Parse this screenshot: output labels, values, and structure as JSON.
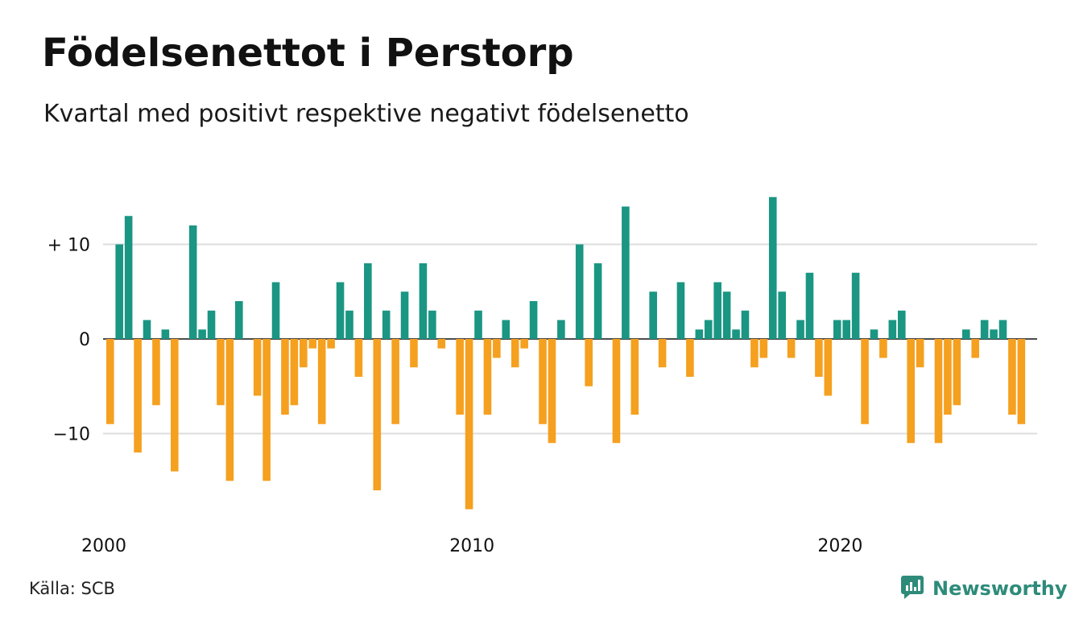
{
  "header": {
    "title": "Födelsenettot i Perstorp",
    "subtitle": "Kvartal med positivt respektive negativt födelsenetto"
  },
  "footer": {
    "source": "Källa: SCB",
    "brand": "Newsworthy"
  },
  "colors": {
    "positive": "#1a9683",
    "negative": "#f5a01f",
    "grid": "#dddddd",
    "brand": "#2e8b7a"
  },
  "chart_data": {
    "type": "bar",
    "x_tick_labels": [
      "2000",
      "2010",
      "2020"
    ],
    "y_tick_labels": [
      "+ 10",
      "0",
      "−10"
    ],
    "y_ticks": [
      10,
      0,
      -10
    ],
    "ylim": [
      -19,
      16
    ],
    "start_year": 2000,
    "categories": [
      "2000 Q1",
      "2000 Q2",
      "2000 Q3",
      "2000 Q4",
      "2001 Q1",
      "2001 Q2",
      "2001 Q3",
      "2001 Q4",
      "2002 Q1",
      "2002 Q2",
      "2002 Q3",
      "2002 Q4",
      "2003 Q1",
      "2003 Q2",
      "2003 Q3",
      "2003 Q4",
      "2004 Q1",
      "2004 Q2",
      "2004 Q3",
      "2004 Q4",
      "2005 Q1",
      "2005 Q2",
      "2005 Q3",
      "2005 Q4",
      "2006 Q1",
      "2006 Q2",
      "2006 Q3",
      "2006 Q4",
      "2007 Q1",
      "2007 Q2",
      "2007 Q3",
      "2007 Q4",
      "2008 Q1",
      "2008 Q2",
      "2008 Q3",
      "2008 Q4",
      "2009 Q1",
      "2009 Q2",
      "2009 Q3",
      "2009 Q4",
      "2010 Q1",
      "2010 Q2",
      "2010 Q3",
      "2010 Q4",
      "2011 Q1",
      "2011 Q2",
      "2011 Q3",
      "2011 Q4",
      "2012 Q1",
      "2012 Q2",
      "2012 Q3",
      "2012 Q4",
      "2013 Q1",
      "2013 Q2",
      "2013 Q3",
      "2013 Q4",
      "2014 Q1",
      "2014 Q2",
      "2014 Q3",
      "2014 Q4",
      "2015 Q1",
      "2015 Q2",
      "2015 Q3",
      "2015 Q4",
      "2016 Q1",
      "2016 Q2",
      "2016 Q3",
      "2016 Q4",
      "2017 Q1",
      "2017 Q2",
      "2017 Q3",
      "2017 Q4",
      "2018 Q1",
      "2018 Q2",
      "2018 Q3",
      "2018 Q4",
      "2019 Q1",
      "2019 Q2",
      "2019 Q3",
      "2019 Q4",
      "2020 Q1",
      "2020 Q2",
      "2020 Q3",
      "2020 Q4",
      "2021 Q1",
      "2021 Q2",
      "2021 Q3",
      "2021 Q4",
      "2022 Q1",
      "2022 Q2",
      "2022 Q3",
      "2022 Q4",
      "2023 Q1",
      "2023 Q2",
      "2023 Q3",
      "2023 Q4",
      "2024 Q1",
      "2024 Q2",
      "2024 Q3",
      "2024 Q4"
    ],
    "values": [
      -9,
      10,
      13,
      -12,
      2,
      -7,
      1,
      -14,
      0,
      12,
      1,
      3,
      -7,
      -15,
      4,
      0,
      -6,
      -15,
      6,
      -8,
      -7,
      -3,
      -1,
      -9,
      -1,
      6,
      3,
      -4,
      8,
      -16,
      3,
      -9,
      5,
      -3,
      8,
      3,
      -1,
      0,
      -8,
      -18,
      3,
      -8,
      -2,
      2,
      -3,
      -1,
      4,
      -9,
      -11,
      2,
      0,
      10,
      -5,
      8,
      0,
      -11,
      14,
      -8,
      0,
      5,
      -3,
      0,
      6,
      -4,
      1,
      2,
      6,
      5,
      1,
      3,
      -3,
      -2,
      15,
      5,
      -2,
      2,
      7,
      -4,
      -6,
      2,
      2,
      7,
      -9,
      1,
      -2,
      2,
      3,
      -11,
      -3,
      0,
      -11,
      -8,
      -7,
      1,
      -2,
      2,
      1,
      2,
      -8,
      -9
    ]
  }
}
